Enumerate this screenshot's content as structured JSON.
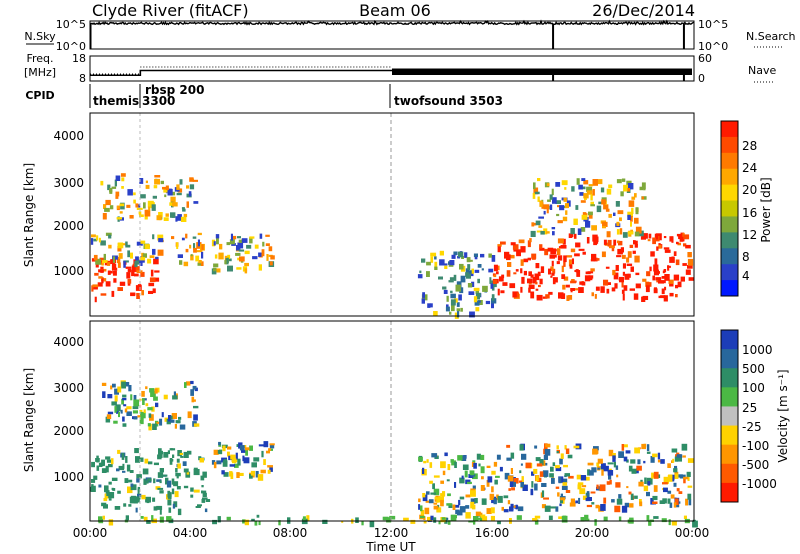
{
  "header": {
    "title": "Clyde River (fitACF)",
    "beam": "Beam 06",
    "date": "26/Dec/2014"
  },
  "strip_labels": {
    "nsky": "N.Sky",
    "nsky_ticks": [
      "10^5",
      "10^0"
    ],
    "nsearch": "N.Search",
    "nsearch_ticks": [
      "10^5",
      "10^0"
    ],
    "freq": "Freq.",
    "freq_unit": "[MHz]",
    "freq_ticks": [
      "18",
      "8"
    ],
    "nave": "Nave",
    "nave_ticks": [
      "60",
      "0"
    ],
    "cpid": "CPID"
  },
  "cpid_segments": [
    {
      "name": "themis",
      "start_hr": 0,
      "end_hr": 2
    },
    {
      "name": "3300",
      "start_hr": 2,
      "end_hr": 2
    },
    {
      "name": "rbsp  200",
      "start_hr": 2,
      "end_hr": 12
    },
    {
      "name": "twofsound  3503",
      "start_hr": 12,
      "end_hr": 24
    }
  ],
  "axes": {
    "y_label": "Slant Range [km]",
    "y_ticks": [
      "4000",
      "3000",
      "2000",
      "1000"
    ],
    "x_label": "Time UT",
    "x_ticks": [
      "00:00",
      "04:00",
      "08:00",
      "12:00",
      "16:00",
      "20:00",
      "00:00"
    ]
  },
  "power_colorbar": {
    "label": "Power [dB]",
    "ticks": [
      "28",
      "24",
      "20",
      "16",
      "12",
      "8",
      "4"
    ],
    "colors": [
      "#ff1a00",
      "#ff4a00",
      "#ff7a00",
      "#ffa800",
      "#ffd700",
      "#c7c800",
      "#7ea83b",
      "#3e8a70",
      "#2a6a9a",
      "#2a40c8",
      "#0018ff"
    ]
  },
  "velocity_colorbar": {
    "label": "Velocity [m s⁻¹]",
    "ticks": [
      "1000",
      "500",
      "100",
      "25",
      "-25",
      "-100",
      "-500",
      "-1000"
    ],
    "colors": [
      "#1c3db8",
      "#28679c",
      "#2e8d66",
      "#4bb844",
      "#c0c0c0",
      "#ffd200",
      "#ff9600",
      "#ff5a00",
      "#ff1a00"
    ]
  },
  "chart_data": [
    {
      "type": "line",
      "title": "N.Sky / N.Search",
      "x_range_hr": [
        0,
        24
      ],
      "ylim_log": [
        0,
        5
      ]
    },
    {
      "type": "line",
      "title": "Freq. / Nave",
      "freq_ylim_mhz": [
        8,
        18
      ],
      "nave_ylim": [
        0,
        60
      ],
      "x_range_hr": [
        0,
        24
      ]
    },
    {
      "type": "heatmap",
      "title": "Power [dB]",
      "x_range_hr": [
        0,
        24
      ],
      "ylim_km": [
        180,
        4600
      ],
      "zlim": [
        0,
        30
      ],
      "regions": [
        {
          "t0": 0.0,
          "t1": 2.6,
          "r0": 600,
          "r1": 1500,
          "level": "high"
        },
        {
          "t0": 0.0,
          "t1": 4.5,
          "r0": 1300,
          "r1": 2000,
          "level": "mid"
        },
        {
          "t0": 0.4,
          "t1": 4.2,
          "r0": 2300,
          "r1": 3300,
          "level": "mid"
        },
        {
          "t0": 4.8,
          "t1": 7.2,
          "r0": 1200,
          "r1": 2000,
          "level": "mid"
        },
        {
          "t0": 13.0,
          "t1": 16.0,
          "r0": 250,
          "r1": 1600,
          "level": "low"
        },
        {
          "t0": 16.0,
          "t1": 19.0,
          "r0": 600,
          "r1": 1900,
          "level": "high"
        },
        {
          "t0": 19.0,
          "t1": 23.8,
          "r0": 600,
          "r1": 2000,
          "level": "high"
        },
        {
          "t0": 17.5,
          "t1": 22.0,
          "r0": 2000,
          "r1": 3200,
          "level": "mid"
        }
      ]
    },
    {
      "type": "heatmap",
      "title": "Velocity [m s⁻¹]",
      "x_range_hr": [
        0,
        24
      ],
      "ylim_km": [
        180,
        4600
      ],
      "zlim": [
        -1000,
        1000
      ],
      "regions": [
        {
          "t0": 0.0,
          "t1": 4.6,
          "r0": 450,
          "r1": 1800,
          "level": "slow-positive"
        },
        {
          "t0": 0.4,
          "t1": 4.2,
          "r0": 2300,
          "r1": 3300,
          "level": "mixed"
        },
        {
          "t0": 4.8,
          "t1": 7.2,
          "r0": 1200,
          "r1": 2000,
          "level": "mixed"
        },
        {
          "t0": 13.0,
          "t1": 16.5,
          "r0": 250,
          "r1": 1700,
          "level": "mixed"
        },
        {
          "t0": 16.5,
          "t1": 23.8,
          "r0": 500,
          "r1": 1900,
          "level": "negative"
        },
        {
          "t0": 0.0,
          "t1": 24.0,
          "r0": 180,
          "r1": 320,
          "level": "near-zero"
        }
      ]
    }
  ]
}
